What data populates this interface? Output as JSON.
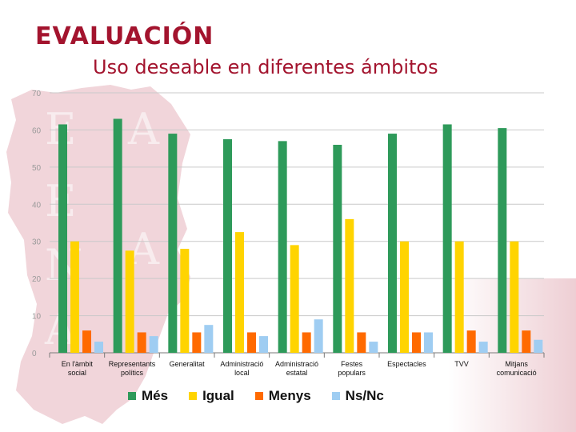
{
  "slide": {
    "title": "EVALUACIÓN",
    "subtitle": "Uso deseable en diferentes ámbitos"
  },
  "colors": {
    "title": "#a3142e",
    "series": [
      "#2e9a5a",
      "#ffd400",
      "#ff6a00",
      "#9fcdf2"
    ]
  },
  "chart_data": {
    "type": "bar",
    "title": "",
    "xlabel": "",
    "ylabel": "",
    "ylim": [
      0,
      70
    ],
    "yticks": [
      0,
      10,
      20,
      30,
      40,
      50,
      60,
      70
    ],
    "grid": true,
    "legend_position": "bottom",
    "categories": [
      [
        "En l'àmbit",
        "social"
      ],
      [
        "Representants",
        "polítics"
      ],
      [
        "Generalitat"
      ],
      [
        "Administració",
        "local"
      ],
      [
        "Administració",
        "estatal"
      ],
      [
        "Festes",
        "populars"
      ],
      [
        "Espectacles"
      ],
      [
        "TVV"
      ],
      [
        "Mitjans",
        "comunicació"
      ]
    ],
    "series": [
      {
        "name": "Més",
        "values": [
          61.5,
          63,
          59,
          57.5,
          57,
          56,
          59,
          61.5,
          60.5
        ]
      },
      {
        "name": "Igual",
        "values": [
          30,
          27.5,
          28,
          32.5,
          29,
          36,
          30,
          30,
          30
        ]
      },
      {
        "name": "Menys",
        "values": [
          6,
          5.5,
          5.5,
          5.5,
          5.5,
          5.5,
          5.5,
          6,
          6
        ]
      },
      {
        "name": "Ns/Nc",
        "values": [
          3,
          4.5,
          7.5,
          4.5,
          9,
          3,
          5.5,
          3,
          3.5
        ]
      }
    ]
  }
}
